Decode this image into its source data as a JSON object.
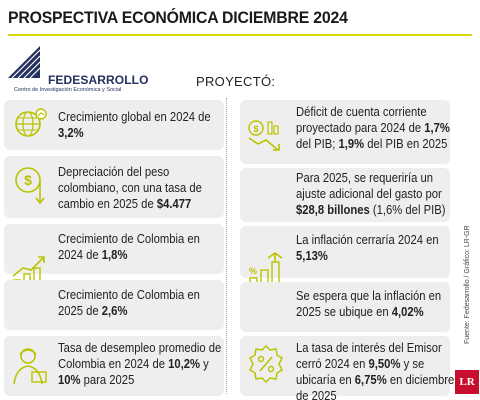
{
  "title": "PROSPECTIVA ECONÓMICA DICIEMBRE 2024",
  "logo": {
    "name": "FEDESARROLLO",
    "subtitle": "Centro de Investigación Económica y Social"
  },
  "proyecto_label": "PROYECTÓ:",
  "left_items": [
    {
      "text": "Crecimiento global en 2024 de ",
      "highlight": "3,2%",
      "icon": "globe-growth-icon"
    },
    {
      "text": "Depreciación del peso colombiano, con una tasa de cambio en 2025 de ",
      "highlight": "$4.477",
      "icon": "peso-down-icon"
    },
    {
      "text": "Crecimiento de Colombia en 2024 de ",
      "highlight": "1,8%",
      "icon": "growth-bars-icon"
    },
    {
      "text": "Crecimiento de Colombia en 2025 de ",
      "highlight": "2,6%",
      "icon": "growth-bars-icon"
    },
    {
      "text": "Tasa de desempleo promedio de Colombia en 2024 de 10,2% y 10% para 2025",
      "icon": "worker-icon"
    }
  ],
  "right_items": [
    {
      "text": "Déficit de cuenta corriente proyectado para 2024 de 1,7% del PIB; 1,9% del PIB en 2025",
      "icon": "coins-decline-icon"
    },
    {
      "text": "Para 2025, se requeriría un ajuste adicional del gasto por $28,8 billones (1,6% del PIB)",
      "icon": "none"
    },
    {
      "text": "La inflación cerraría 2024 en 5,13%",
      "icon": "inflation-icon"
    },
    {
      "text": "Se espera que la inflación en 2025 se ubique en 4,02%",
      "icon": "inflation-icon"
    },
    {
      "text": "La tasa de interés del Emisor cerró 2024 en 9,50% y se ubicaría en 6,75% en diciembre de 2025",
      "icon": "percent-badge-icon"
    }
  ],
  "source": "Fuente: Fedesarrollo / Gráfico: LR-GR",
  "brand": "LR",
  "colors": {
    "accent": "#d7d900",
    "icon_green": "#b9c400",
    "card": "#eeeeee",
    "logo_blue": "#24305e"
  }
}
